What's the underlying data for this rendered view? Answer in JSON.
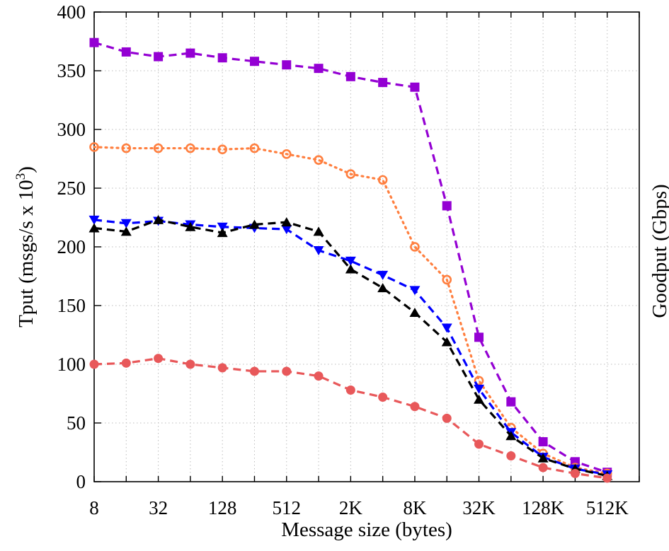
{
  "chart_data": {
    "type": "line",
    "title": "",
    "xlabel": "Message size (bytes)",
    "ylabel": "Tput (msgs/s x 10",
    "ylabel_sup": "3",
    "ylabel_close": ")",
    "y2label": "Goodput (Gbps)",
    "x_scale": "log2",
    "categories": [
      "8",
      "16",
      "32",
      "64",
      "128",
      "256",
      "512",
      "1K",
      "2K",
      "4K",
      "8K",
      "16K",
      "32K",
      "64K",
      "128K",
      "256K",
      "512K",
      "1M"
    ],
    "x_tick_labels": [
      "8",
      "32",
      "128",
      "512",
      "2K",
      "8K",
      "32K",
      "128K",
      "512K"
    ],
    "ylim": [
      0,
      400
    ],
    "y_ticks": [
      0,
      50,
      100,
      150,
      200,
      250,
      300,
      350,
      400
    ],
    "grid": true,
    "legend": "none",
    "series": [
      {
        "color": "#9400d3",
        "marker": "square",
        "dash": "dashed",
        "values": [
          374,
          366,
          362,
          365,
          361,
          358,
          355,
          352,
          345,
          340,
          336,
          235,
          123,
          68,
          34,
          17,
          8,
          null
        ]
      },
      {
        "color": "#ff7f3f",
        "marker": "circle-open",
        "dash": "dotted",
        "values": [
          285,
          284,
          284,
          284,
          283,
          284,
          279,
          274,
          262,
          257,
          200,
          172,
          86,
          46,
          24,
          12,
          7,
          null
        ]
      },
      {
        "color": "#0000ff",
        "marker": "triangle-down",
        "dash": "dashed",
        "values": [
          223,
          220,
          222,
          219,
          217,
          216,
          215,
          197,
          188,
          176,
          163,
          131,
          79,
          42,
          21,
          11,
          6,
          null
        ]
      },
      {
        "color": "#000000",
        "marker": "triangle-up",
        "dash": "dashed",
        "values": [
          216,
          213,
          223,
          217,
          212,
          219,
          221,
          213,
          181,
          165,
          144,
          119,
          70,
          39,
          20,
          11,
          5,
          null
        ]
      },
      {
        "color": "#e8585a",
        "marker": "circle",
        "dash": "dashed",
        "values": [
          100,
          101,
          105,
          100,
          97,
          94,
          94,
          90,
          78,
          72,
          64,
          54,
          32,
          22,
          12,
          7,
          3,
          null
        ]
      }
    ]
  }
}
